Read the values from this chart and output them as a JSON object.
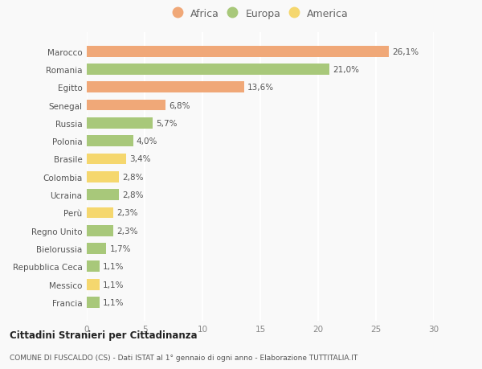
{
  "categories": [
    "Francia",
    "Messico",
    "Repubblica Ceca",
    "Bielorussia",
    "Regno Unito",
    "Perù",
    "Ucraina",
    "Colombia",
    "Brasile",
    "Polonia",
    "Russia",
    "Senegal",
    "Egitto",
    "Romania",
    "Marocco"
  ],
  "values": [
    1.1,
    1.1,
    1.1,
    1.7,
    2.3,
    2.3,
    2.8,
    2.8,
    3.4,
    4.0,
    5.7,
    6.8,
    13.6,
    21.0,
    26.1
  ],
  "colors": [
    "#a8c87a",
    "#f5d76e",
    "#a8c87a",
    "#a8c87a",
    "#a8c87a",
    "#f5d76e",
    "#a8c87a",
    "#f5d76e",
    "#f5d76e",
    "#a8c87a",
    "#a8c87a",
    "#f0a878",
    "#f0a878",
    "#a8c87a",
    "#f0a878"
  ],
  "labels": [
    "1,1%",
    "1,1%",
    "1,1%",
    "1,7%",
    "2,3%",
    "2,3%",
    "2,8%",
    "2,8%",
    "3,4%",
    "4,0%",
    "5,7%",
    "6,8%",
    "13,6%",
    "21,0%",
    "26,1%"
  ],
  "legend": [
    {
      "label": "Africa",
      "color": "#f0a878"
    },
    {
      "label": "Europa",
      "color": "#a8c87a"
    },
    {
      "label": "America",
      "color": "#f5d76e"
    }
  ],
  "xlim": [
    0,
    30
  ],
  "xticks": [
    0,
    5,
    10,
    15,
    20,
    25,
    30
  ],
  "title": "Cittadini Stranieri per Cittadinanza",
  "subtitle": "COMUNE DI FUSCALDO (CS) - Dati ISTAT al 1° gennaio di ogni anno - Elaborazione TUTTITALIA.IT",
  "bg_color": "#f9f9f9",
  "grid_color": "#ffffff"
}
